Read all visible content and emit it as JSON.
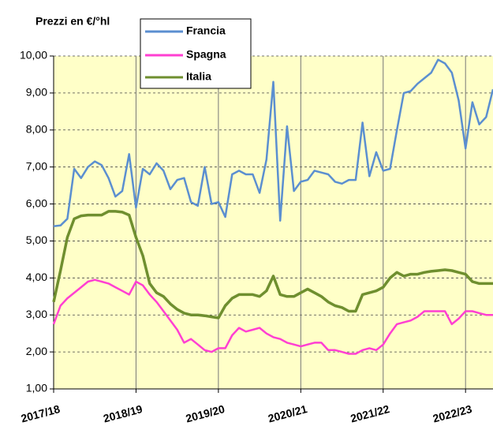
{
  "chart_data": {
    "type": "line",
    "title": "Prezzi en €/°hl",
    "categories": [
      "2017/18",
      null,
      null,
      null,
      null,
      null,
      null,
      null,
      null,
      null,
      null,
      null,
      "2018/19",
      null,
      null,
      null,
      null,
      null,
      null,
      null,
      null,
      null,
      null,
      null,
      "2019/20",
      null,
      null,
      null,
      null,
      null,
      null,
      null,
      null,
      null,
      null,
      null,
      "2020/21",
      null,
      null,
      null,
      null,
      null,
      null,
      null,
      null,
      null,
      null,
      null,
      "2021/22",
      null,
      null,
      null,
      null,
      null,
      null,
      null,
      null,
      null,
      null,
      null,
      "2022/23",
      null,
      null,
      null,
      null
    ],
    "series": [
      {
        "name": "Francia",
        "color": "#5b8fd0",
        "values": [
          5.4,
          5.42,
          5.6,
          6.95,
          6.7,
          7.0,
          7.15,
          7.05,
          6.7,
          6.2,
          6.35,
          7.35,
          5.9,
          6.95,
          6.8,
          7.1,
          6.9,
          6.4,
          6.65,
          6.7,
          6.05,
          5.95,
          7.0,
          6.0,
          6.05,
          5.65,
          6.8,
          6.9,
          6.8,
          6.8,
          6.3,
          7.2,
          9.3,
          5.55,
          8.1,
          6.35,
          6.6,
          6.65,
          6.9,
          6.85,
          6.8,
          6.6,
          6.55,
          6.65,
          6.65,
          8.2,
          6.75,
          7.4,
          6.9,
          6.95,
          8.0,
          9.0,
          9.05,
          9.25,
          9.4,
          9.55,
          9.9,
          9.8,
          9.55,
          8.8,
          7.5,
          8.75,
          8.15,
          8.35,
          9.1
        ]
      },
      {
        "name": "Spagna",
        "color": "#ff3fd2",
        "values": [
          2.75,
          3.25,
          3.45,
          3.6,
          3.75,
          3.9,
          3.95,
          3.9,
          3.85,
          3.75,
          3.65,
          3.55,
          3.9,
          3.8,
          3.55,
          3.35,
          3.1,
          2.85,
          2.6,
          2.25,
          2.35,
          2.2,
          2.05,
          2.0,
          2.1,
          2.1,
          2.45,
          2.65,
          2.55,
          2.6,
          2.65,
          2.5,
          2.4,
          2.35,
          2.25,
          2.2,
          2.15,
          2.2,
          2.25,
          2.25,
          2.05,
          2.05,
          2.0,
          1.95,
          1.95,
          2.05,
          2.1,
          2.05,
          2.2,
          2.5,
          2.75,
          2.8,
          2.85,
          2.95,
          3.1,
          3.1,
          3.1,
          3.1,
          2.75,
          2.9,
          3.1,
          3.1,
          3.05,
          3.0,
          3.0
        ]
      },
      {
        "name": "Italia",
        "color": "#6f8f2f",
        "values": [
          3.35,
          4.2,
          5.1,
          5.6,
          5.68,
          5.7,
          5.7,
          5.7,
          5.8,
          5.8,
          5.78,
          5.7,
          5.1,
          4.6,
          3.85,
          3.6,
          3.5,
          3.3,
          3.15,
          3.05,
          3.0,
          3.0,
          2.98,
          2.95,
          2.92,
          3.25,
          3.45,
          3.55,
          3.55,
          3.55,
          3.5,
          3.65,
          4.05,
          3.55,
          3.5,
          3.5,
          3.6,
          3.7,
          3.6,
          3.5,
          3.35,
          3.25,
          3.2,
          3.1,
          3.1,
          3.55,
          3.6,
          3.65,
          3.75,
          4.0,
          4.15,
          4.05,
          4.1,
          4.1,
          4.15,
          4.18,
          4.2,
          4.22,
          4.2,
          4.15,
          4.1,
          3.9,
          3.85,
          3.85,
          3.85
        ]
      }
    ],
    "ylim": [
      1,
      10
    ],
    "yticks": [
      {
        "value": 1,
        "label": "1,00"
      },
      {
        "value": 2,
        "label": "2,00"
      },
      {
        "value": 3,
        "label": "3,00"
      },
      {
        "value": 4,
        "label": "4,00"
      },
      {
        "value": 5,
        "label": "5,00"
      },
      {
        "value": 6,
        "label": "6,00"
      },
      {
        "value": 7,
        "label": "7,00"
      },
      {
        "value": 8,
        "label": "8,00"
      },
      {
        "value": 9,
        "label": "9,00"
      },
      {
        "value": 10,
        "label": "10,00"
      }
    ],
    "grid": true
  }
}
